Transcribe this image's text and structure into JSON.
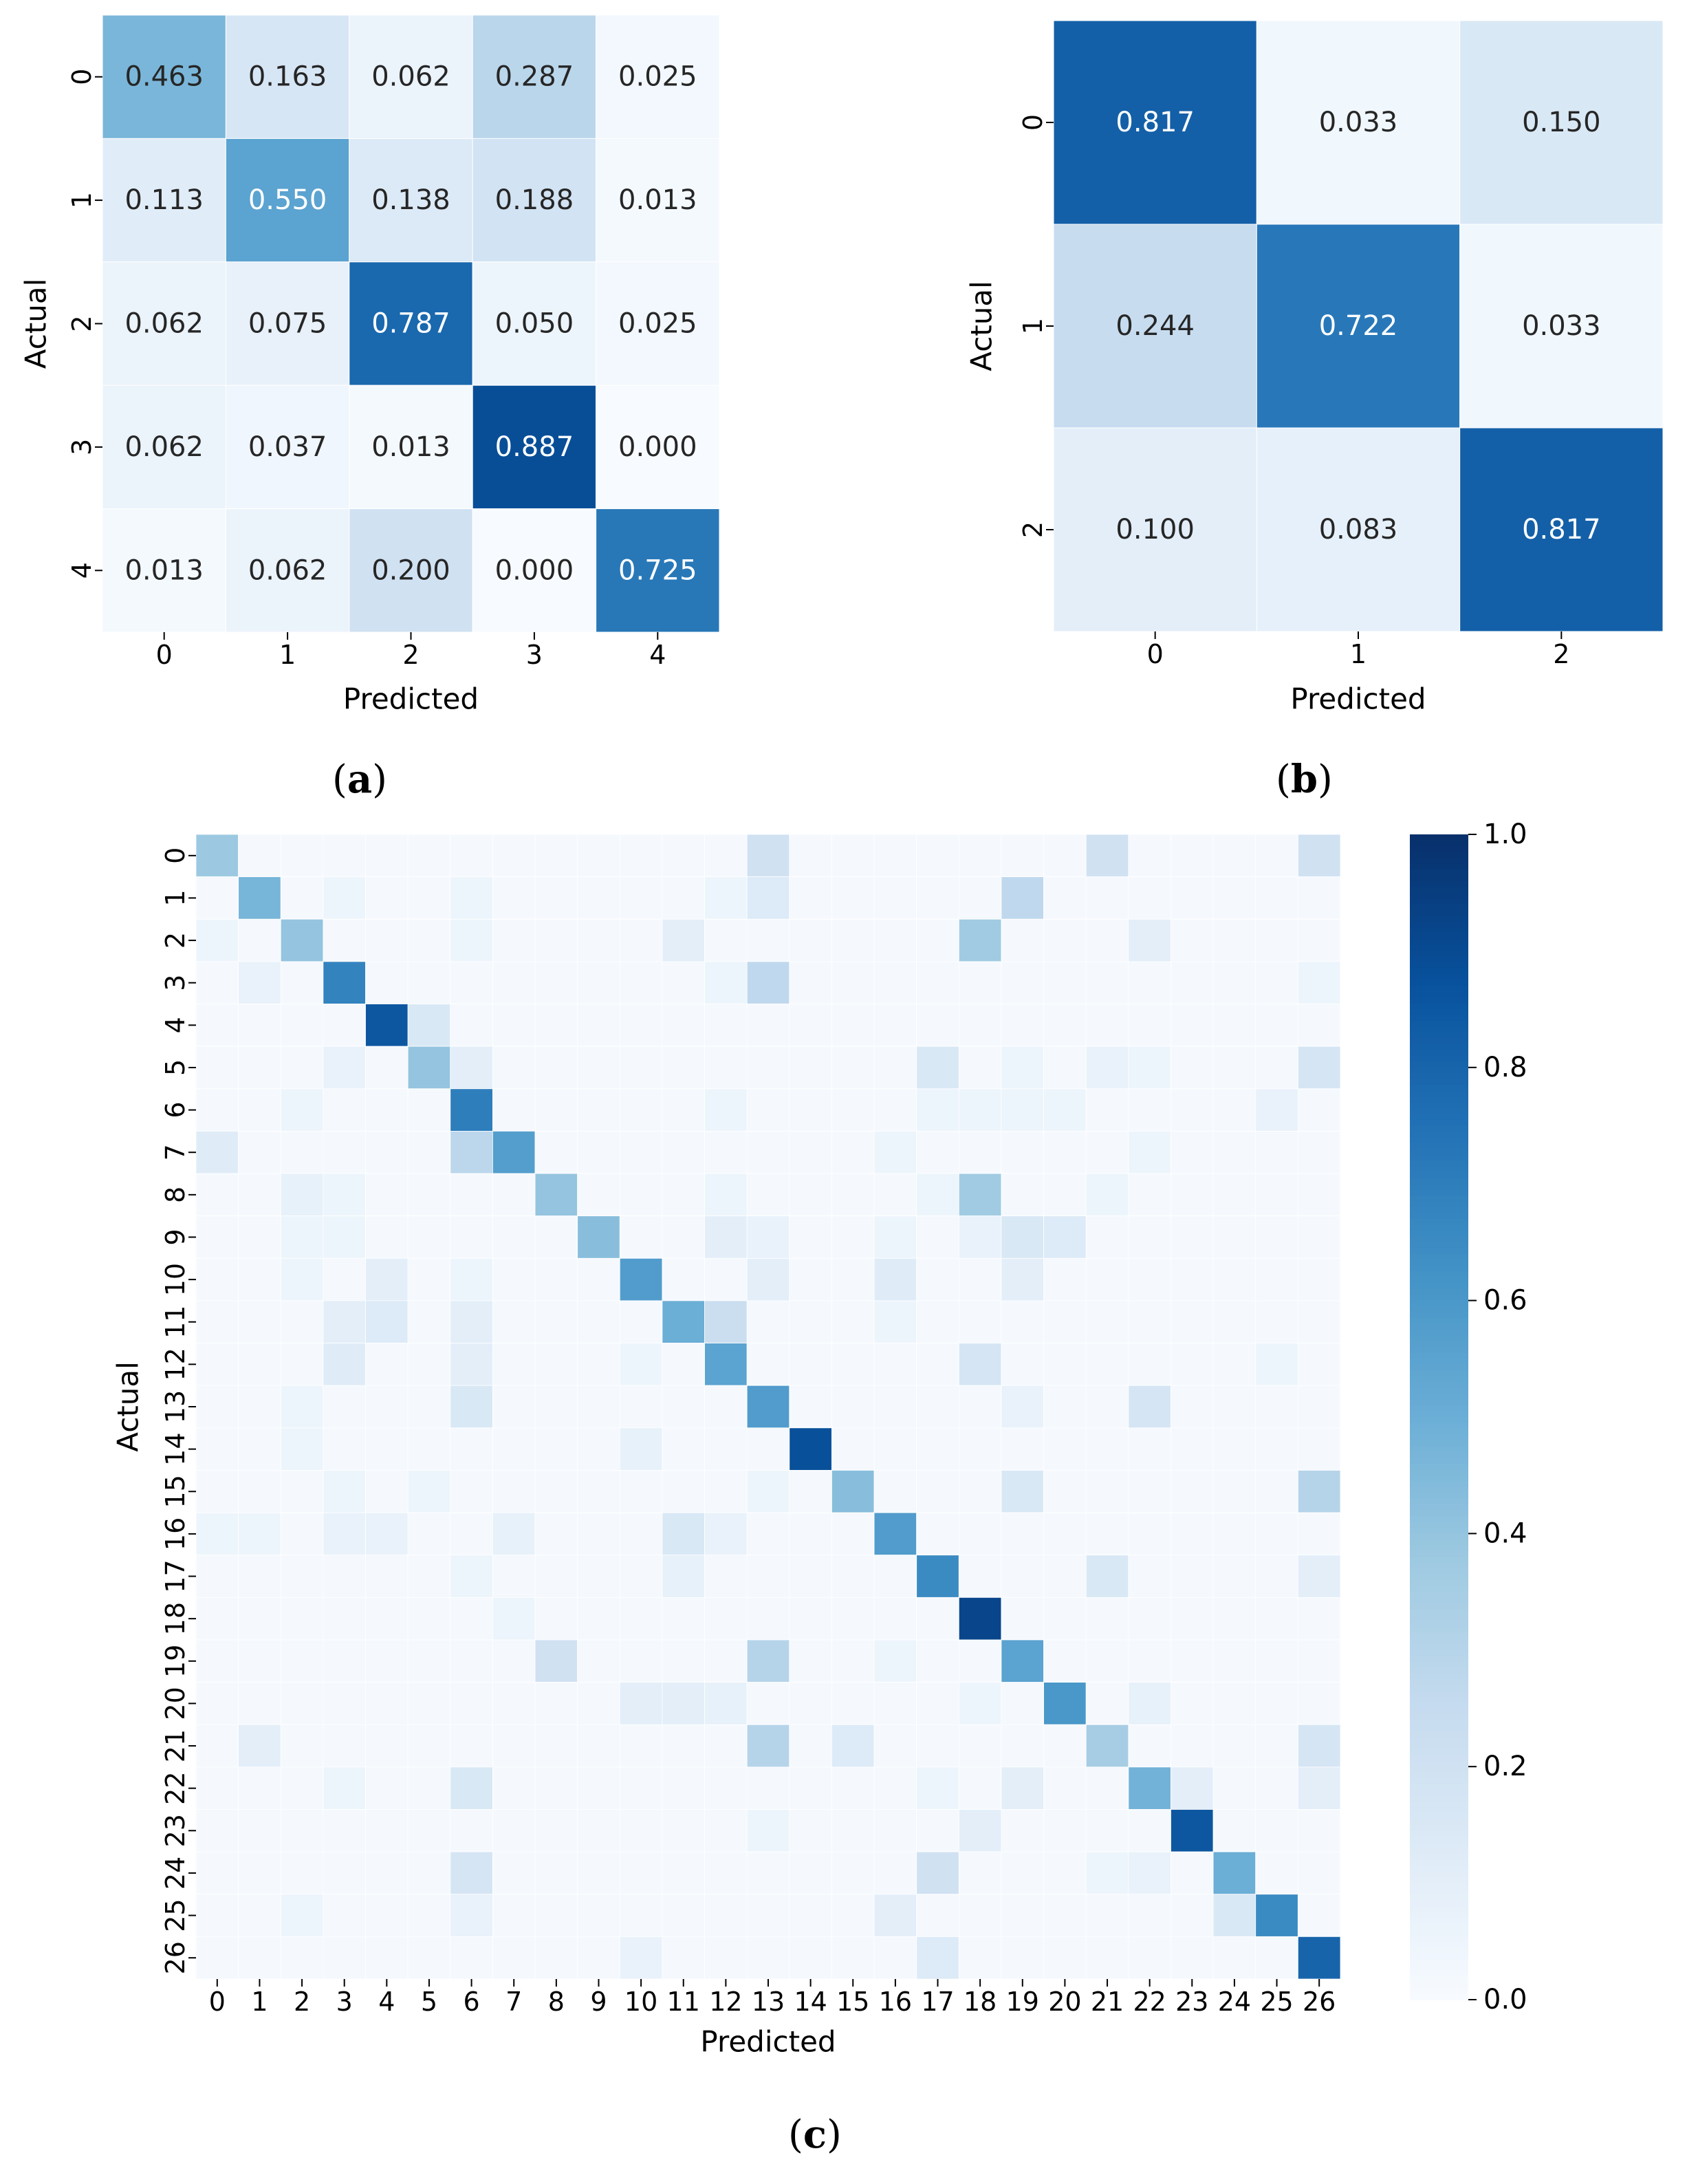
{
  "chart_data": [
    {
      "type": "heatmap",
      "panel_label": "(a)",
      "panel_letter": "a",
      "xlabel": "Predicted",
      "ylabel": "Actual",
      "x_ticks": [
        "0",
        "1",
        "2",
        "3",
        "4"
      ],
      "y_ticks": [
        "0",
        "1",
        "2",
        "3",
        "4"
      ],
      "values_text": [
        [
          "0.463",
          "0.163",
          "0.062",
          "0.287",
          "0.025"
        ],
        [
          "0.113",
          "0.550",
          "0.138",
          "0.188",
          "0.013"
        ],
        [
          "0.062",
          "0.075",
          "0.787",
          "0.050",
          "0.025"
        ],
        [
          "0.062",
          "0.037",
          "0.013",
          "0.887",
          "0.000"
        ],
        [
          "0.013",
          "0.062",
          "0.200",
          "0.000",
          "0.725"
        ]
      ],
      "color_range": [
        0,
        1
      ],
      "colormap": "Blues",
      "annotated": true,
      "colorbar": false
    },
    {
      "type": "heatmap",
      "panel_label": "(b)",
      "panel_letter": "b",
      "xlabel": "Predicted",
      "ylabel": "Actual",
      "x_ticks": [
        "0",
        "1",
        "2"
      ],
      "y_ticks": [
        "0",
        "1",
        "2"
      ],
      "values_text": [
        [
          "0.817",
          "0.033",
          "0.150"
        ],
        [
          "0.244",
          "0.722",
          "0.033"
        ],
        [
          "0.100",
          "0.083",
          "0.817"
        ]
      ],
      "color_range": [
        0,
        1
      ],
      "colormap": "Blues",
      "annotated": true,
      "colorbar": false
    },
    {
      "type": "heatmap",
      "panel_label": "(c)",
      "panel_letter": "c",
      "xlabel": "Predicted",
      "ylabel": "Actual",
      "x_ticks": [
        "0",
        "1",
        "2",
        "3",
        "4",
        "5",
        "6",
        "7",
        "8",
        "9",
        "10",
        "11",
        "12",
        "13",
        "14",
        "15",
        "16",
        "17",
        "18",
        "19",
        "20",
        "21",
        "22",
        "23",
        "24",
        "25",
        "26"
      ],
      "y_ticks": [
        "0",
        "1",
        "2",
        "3",
        "4",
        "5",
        "6",
        "7",
        "8",
        "9",
        "10",
        "11",
        "12",
        "13",
        "14",
        "15",
        "16",
        "17",
        "18",
        "19",
        "20",
        "21",
        "22",
        "23",
        "24",
        "25",
        "26"
      ],
      "diagonal": [
        0.38,
        0.47,
        0.4,
        0.68,
        0.85,
        0.4,
        0.7,
        0.57,
        0.4,
        0.43,
        0.58,
        0.5,
        0.55,
        0.58,
        0.88,
        0.43,
        0.58,
        0.65,
        0.92,
        0.55,
        0.6,
        0.35,
        0.48,
        0.85,
        0.5,
        0.65,
        0.8
      ],
      "off_diagonal": [
        {
          "r": 0,
          "c": 13,
          "v": 0.2
        },
        {
          "r": 0,
          "c": 21,
          "v": 0.2
        },
        {
          "r": 0,
          "c": 26,
          "v": 0.2
        },
        {
          "r": 1,
          "c": 3,
          "v": 0.05
        },
        {
          "r": 1,
          "c": 6,
          "v": 0.05
        },
        {
          "r": 1,
          "c": 12,
          "v": 0.05
        },
        {
          "r": 1,
          "c": 13,
          "v": 0.13
        },
        {
          "r": 1,
          "c": 19,
          "v": 0.27
        },
        {
          "r": 2,
          "c": 0,
          "v": 0.05
        },
        {
          "r": 2,
          "c": 6,
          "v": 0.05
        },
        {
          "r": 2,
          "c": 11,
          "v": 0.1
        },
        {
          "r": 2,
          "c": 18,
          "v": 0.37
        },
        {
          "r": 2,
          "c": 22,
          "v": 0.1
        },
        {
          "r": 3,
          "c": 1,
          "v": 0.07
        },
        {
          "r": 3,
          "c": 12,
          "v": 0.05
        },
        {
          "r": 3,
          "c": 13,
          "v": 0.27
        },
        {
          "r": 3,
          "c": 26,
          "v": 0.05
        },
        {
          "r": 4,
          "c": 5,
          "v": 0.15
        },
        {
          "r": 5,
          "c": 3,
          "v": 0.07
        },
        {
          "r": 5,
          "c": 6,
          "v": 0.1
        },
        {
          "r": 5,
          "c": 17,
          "v": 0.15
        },
        {
          "r": 5,
          "c": 19,
          "v": 0.05
        },
        {
          "r": 5,
          "c": 21,
          "v": 0.07
        },
        {
          "r": 5,
          "c": 22,
          "v": 0.05
        },
        {
          "r": 5,
          "c": 26,
          "v": 0.17
        },
        {
          "r": 6,
          "c": 2,
          "v": 0.05
        },
        {
          "r": 6,
          "c": 12,
          "v": 0.05
        },
        {
          "r": 6,
          "c": 17,
          "v": 0.05
        },
        {
          "r": 6,
          "c": 18,
          "v": 0.05
        },
        {
          "r": 6,
          "c": 19,
          "v": 0.05
        },
        {
          "r": 6,
          "c": 20,
          "v": 0.05
        },
        {
          "r": 6,
          "c": 25,
          "v": 0.07
        },
        {
          "r": 7,
          "c": 0,
          "v": 0.12
        },
        {
          "r": 7,
          "c": 6,
          "v": 0.28
        },
        {
          "r": 7,
          "c": 16,
          "v": 0.05
        },
        {
          "r": 7,
          "c": 22,
          "v": 0.05
        },
        {
          "r": 8,
          "c": 2,
          "v": 0.08
        },
        {
          "r": 8,
          "c": 3,
          "v": 0.05
        },
        {
          "r": 8,
          "c": 12,
          "v": 0.05
        },
        {
          "r": 8,
          "c": 17,
          "v": 0.05
        },
        {
          "r": 8,
          "c": 18,
          "v": 0.37
        },
        {
          "r": 8,
          "c": 21,
          "v": 0.05
        },
        {
          "r": 9,
          "c": 2,
          "v": 0.05
        },
        {
          "r": 9,
          "c": 3,
          "v": 0.05
        },
        {
          "r": 9,
          "c": 12,
          "v": 0.1
        },
        {
          "r": 9,
          "c": 13,
          "v": 0.07
        },
        {
          "r": 9,
          "c": 16,
          "v": 0.05
        },
        {
          "r": 9,
          "c": 18,
          "v": 0.07
        },
        {
          "r": 9,
          "c": 19,
          "v": 0.15
        },
        {
          "r": 9,
          "c": 20,
          "v": 0.13
        },
        {
          "r": 10,
          "c": 2,
          "v": 0.05
        },
        {
          "r": 10,
          "c": 4,
          "v": 0.1
        },
        {
          "r": 10,
          "c": 6,
          "v": 0.05
        },
        {
          "r": 10,
          "c": 13,
          "v": 0.1
        },
        {
          "r": 10,
          "c": 16,
          "v": 0.12
        },
        {
          "r": 10,
          "c": 19,
          "v": 0.1
        },
        {
          "r": 11,
          "c": 3,
          "v": 0.1
        },
        {
          "r": 11,
          "c": 4,
          "v": 0.13
        },
        {
          "r": 11,
          "c": 6,
          "v": 0.1
        },
        {
          "r": 11,
          "c": 12,
          "v": 0.23
        },
        {
          "r": 11,
          "c": 16,
          "v": 0.05
        },
        {
          "r": 12,
          "c": 3,
          "v": 0.12
        },
        {
          "r": 12,
          "c": 6,
          "v": 0.1
        },
        {
          "r": 12,
          "c": 10,
          "v": 0.05
        },
        {
          "r": 12,
          "c": 18,
          "v": 0.17
        },
        {
          "r": 12,
          "c": 25,
          "v": 0.05
        },
        {
          "r": 13,
          "c": 2,
          "v": 0.05
        },
        {
          "r": 13,
          "c": 6,
          "v": 0.15
        },
        {
          "r": 13,
          "c": 19,
          "v": 0.07
        },
        {
          "r": 13,
          "c": 22,
          "v": 0.17
        },
        {
          "r": 14,
          "c": 2,
          "v": 0.05
        },
        {
          "r": 14,
          "c": 10,
          "v": 0.08
        },
        {
          "r": 15,
          "c": 3,
          "v": 0.05
        },
        {
          "r": 15,
          "c": 5,
          "v": 0.05
        },
        {
          "r": 15,
          "c": 13,
          "v": 0.05
        },
        {
          "r": 15,
          "c": 19,
          "v": 0.15
        },
        {
          "r": 15,
          "c": 26,
          "v": 0.3
        },
        {
          "r": 16,
          "c": 0,
          "v": 0.05
        },
        {
          "r": 16,
          "c": 1,
          "v": 0.05
        },
        {
          "r": 16,
          "c": 3,
          "v": 0.07
        },
        {
          "r": 16,
          "c": 4,
          "v": 0.07
        },
        {
          "r": 16,
          "c": 7,
          "v": 0.08
        },
        {
          "r": 16,
          "c": 11,
          "v": 0.15
        },
        {
          "r": 16,
          "c": 12,
          "v": 0.07
        },
        {
          "r": 17,
          "c": 6,
          "v": 0.05
        },
        {
          "r": 17,
          "c": 11,
          "v": 0.08
        },
        {
          "r": 17,
          "c": 21,
          "v": 0.15
        },
        {
          "r": 17,
          "c": 26,
          "v": 0.1
        },
        {
          "r": 18,
          "c": 7,
          "v": 0.05
        },
        {
          "r": 19,
          "c": 8,
          "v": 0.2
        },
        {
          "r": 19,
          "c": 13,
          "v": 0.3
        },
        {
          "r": 19,
          "c": 16,
          "v": 0.05
        },
        {
          "r": 20,
          "c": 10,
          "v": 0.1
        },
        {
          "r": 20,
          "c": 11,
          "v": 0.1
        },
        {
          "r": 20,
          "c": 12,
          "v": 0.08
        },
        {
          "r": 20,
          "c": 18,
          "v": 0.05
        },
        {
          "r": 20,
          "c": 22,
          "v": 0.08
        },
        {
          "r": 21,
          "c": 1,
          "v": 0.1
        },
        {
          "r": 21,
          "c": 13,
          "v": 0.3
        },
        {
          "r": 21,
          "c": 15,
          "v": 0.13
        },
        {
          "r": 21,
          "c": 26,
          "v": 0.17
        },
        {
          "r": 22,
          "c": 3,
          "v": 0.05
        },
        {
          "r": 22,
          "c": 6,
          "v": 0.15
        },
        {
          "r": 22,
          "c": 17,
          "v": 0.05
        },
        {
          "r": 22,
          "c": 19,
          "v": 0.1
        },
        {
          "r": 22,
          "c": 23,
          "v": 0.1
        },
        {
          "r": 22,
          "c": 26,
          "v": 0.1
        },
        {
          "r": 23,
          "c": 13,
          "v": 0.05
        },
        {
          "r": 23,
          "c": 18,
          "v": 0.1
        },
        {
          "r": 24,
          "c": 6,
          "v": 0.17
        },
        {
          "r": 24,
          "c": 17,
          "v": 0.2
        },
        {
          "r": 24,
          "c": 21,
          "v": 0.05
        },
        {
          "r": 24,
          "c": 22,
          "v": 0.07
        },
        {
          "r": 25,
          "c": 2,
          "v": 0.05
        },
        {
          "r": 25,
          "c": 6,
          "v": 0.07
        },
        {
          "r": 25,
          "c": 16,
          "v": 0.1
        },
        {
          "r": 25,
          "c": 24,
          "v": 0.15
        },
        {
          "r": 26,
          "c": 10,
          "v": 0.07
        },
        {
          "r": 26,
          "c": 17,
          "v": 0.13
        }
      ],
      "color_range": [
        0,
        1
      ],
      "colormap": "Blues",
      "annotated": false,
      "colorbar": true,
      "colorbar_ticks": [
        "0.0",
        "0.2",
        "0.4",
        "0.6",
        "0.8",
        "1.0"
      ]
    }
  ]
}
